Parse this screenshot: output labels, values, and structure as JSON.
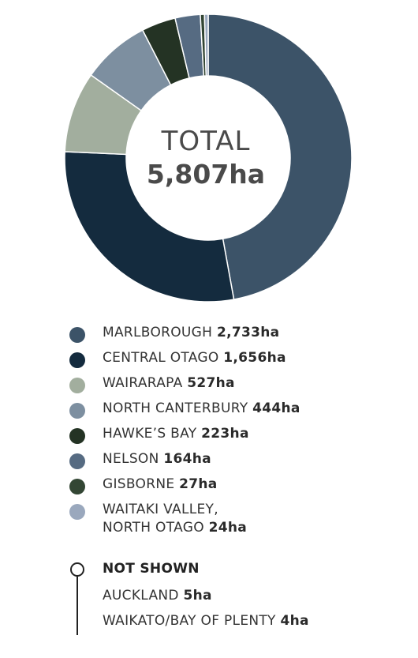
{
  "chart_data": {
    "type": "pie",
    "donut": true,
    "center_title": "TOTAL",
    "center_value": "5,807ha",
    "unit": "ha",
    "categories": [
      "MARLBOROUGH",
      "CENTRAL OTAGO",
      "WAIRARAPA",
      "NORTH CANTERBURY",
      "HAWKE'S BAY",
      "NELSON",
      "GISBORNE",
      "WAITAKI VALLEY, NORTH OTAGO"
    ],
    "values": [
      2733,
      1656,
      527,
      444,
      223,
      164,
      27,
      24
    ],
    "value_labels": [
      "2,733ha",
      "1,656ha",
      "527ha",
      "444ha",
      "223ha",
      "164ha",
      "27ha",
      "24ha"
    ],
    "colors": [
      "#3c5368",
      "#142b3e",
      "#a2ae9e",
      "#7d8fa0",
      "#243324",
      "#566b82",
      "#334634",
      "#9aa8bd"
    ],
    "legend_placement": "bottom",
    "not_shown": {
      "title": "NOT SHOWN",
      "items": [
        {
          "name": "AUCKLAND",
          "value": "5ha"
        },
        {
          "name": "WAIKATO/BAY OF PLENTY",
          "value": "4ha"
        }
      ]
    }
  },
  "legend": {
    "items": [
      {
        "line1": "MARLBOROUGH",
        "value": "2,733ha"
      },
      {
        "line1": "CENTRAL OTAGO",
        "value": "1,656ha"
      },
      {
        "line1": "WAIRARAPA",
        "value": "527ha"
      },
      {
        "line1": "NORTH CANTERBURY",
        "value": "444ha"
      },
      {
        "line1": "HAWKE’S BAY",
        "value": "223ha"
      },
      {
        "line1": "NELSON",
        "value": "164ha"
      },
      {
        "line1": "GISBORNE",
        "value": "27ha"
      },
      {
        "line1": "WAITAKI VALLEY,",
        "line2": "NORTH OTAGO",
        "value": "24ha"
      }
    ]
  }
}
